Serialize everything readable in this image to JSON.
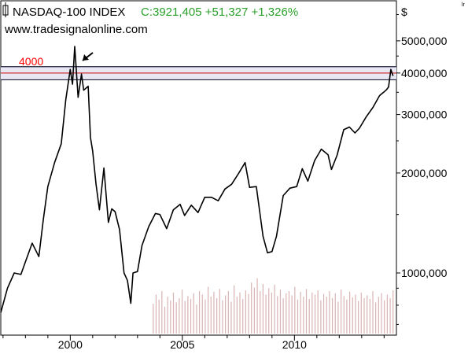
{
  "header": {
    "index_name": "NASDAQ-100 INDEX",
    "quote": "C:3921,405 +51,327 +1,326%",
    "website": "www.tradesignalonline.com",
    "currency": "$",
    "corner_mark": "lr"
  },
  "colors": {
    "price_line": "#000000",
    "quote_text": "#2ca02c",
    "band_border": "#1f1f3a",
    "band_fill": "#e8e8f4",
    "band_label": "#ff0000",
    "band_midline": "#cc0000",
    "volume_bars": "#d9b3b3"
  },
  "chart_data": {
    "type": "line",
    "title": "NASDAQ-100 INDEX",
    "y_scale": "log",
    "ylim": [
      650,
      6600
    ],
    "xlim": [
      1996.9,
      2014.55
    ],
    "y_ticks": [
      {
        "value": 1000,
        "label": "1000,000"
      },
      {
        "value": 2000,
        "label": "2000,000"
      },
      {
        "value": 3000,
        "label": "3000,000"
      },
      {
        "value": 4000,
        "label": "4000,000"
      },
      {
        "value": 5000,
        "label": "5000,000"
      }
    ],
    "x_ticks": [
      {
        "value": 2000,
        "label": "2000"
      },
      {
        "value": 2005,
        "label": "2005"
      },
      {
        "value": 2010,
        "label": "2010"
      }
    ],
    "reference_band": {
      "low": 3816,
      "high": 4180,
      "center": 4000,
      "label": "4000"
    },
    "annotation_arrow_at": {
      "x": 2000.55,
      "y": 4810
    },
    "series": [
      {
        "x": [
          1996.9,
          1997.2,
          1997.5,
          1997.8,
          1998.0,
          1998.3,
          1998.6,
          1998.8,
          1999.0,
          1999.3,
          1999.6,
          1999.8,
          2000.0,
          2000.1,
          2000.2,
          2000.35,
          2000.5,
          2000.6,
          2000.8,
          2000.9,
          2001.0,
          2001.15,
          2001.3,
          2001.5,
          2001.7,
          2001.85,
          2002.0,
          2002.2,
          2002.4,
          2002.55,
          2002.7,
          2002.8,
          2003.0,
          2003.2,
          2003.5,
          2003.8,
          2004.0,
          2004.3,
          2004.6,
          2004.9,
          2005.1,
          2005.4,
          2005.7,
          2006.0,
          2006.3,
          2006.6,
          2006.9,
          2007.2,
          2007.5,
          2007.8,
          2008.0,
          2008.3,
          2008.6,
          2008.8,
          2009.0,
          2009.2,
          2009.5,
          2009.8,
          2010.1,
          2010.35,
          2010.6,
          2010.9,
          2011.2,
          2011.5,
          2011.65,
          2011.9,
          2012.2,
          2012.45,
          2012.7,
          2012.9,
          2013.2,
          2013.5,
          2013.8,
          2014.0,
          2014.1,
          2014.2,
          2014.3,
          2014.4
        ],
        "y": [
          760,
          900,
          1000,
          990,
          1080,
          1230,
          1120,
          1450,
          1820,
          2150,
          2450,
          3320,
          4100,
          3700,
          4810,
          3380,
          3970,
          3550,
          3650,
          2560,
          2330,
          1850,
          1550,
          2070,
          1420,
          1560,
          1530,
          1350,
          1000,
          950,
          810,
          1000,
          1010,
          1210,
          1380,
          1510,
          1500,
          1360,
          1550,
          1610,
          1490,
          1600,
          1520,
          1690,
          1690,
          1650,
          1790,
          1850,
          1990,
          2150,
          1810,
          1820,
          1290,
          1150,
          1160,
          1290,
          1710,
          1800,
          1820,
          2060,
          1890,
          2180,
          2360,
          2270,
          2050,
          2260,
          2700,
          2750,
          2640,
          2730,
          2950,
          3150,
          3420,
          3510,
          3560,
          3630,
          4100,
          3921.405
        ]
      }
    ],
    "volume": {
      "x_start": 2003.7,
      "x_end": 2014.4,
      "levels": [
        0.42,
        0.55,
        0.48,
        0.6,
        0.38,
        0.52,
        0.47,
        0.58,
        0.44,
        0.5,
        0.62,
        0.46,
        0.53,
        0.49,
        0.57,
        0.41,
        0.6,
        0.55,
        0.48,
        0.66,
        0.52,
        0.59,
        0.5,
        0.63,
        0.47,
        0.54,
        0.6,
        0.45,
        0.68,
        0.52,
        0.58,
        0.49,
        0.61,
        0.56,
        0.72,
        0.65,
        0.78,
        0.6,
        0.7,
        0.55,
        0.64,
        0.58,
        0.69,
        0.53,
        0.62,
        0.5,
        0.57,
        0.6,
        0.54,
        0.66,
        0.48,
        0.59,
        0.52,
        0.63,
        0.49,
        0.58,
        0.55,
        0.61,
        0.47,
        0.56,
        0.52,
        0.6,
        0.5,
        0.57,
        0.45,
        0.62,
        0.53,
        0.48,
        0.59,
        0.51,
        0.55,
        0.46,
        0.58,
        0.5,
        0.54,
        0.49,
        0.6,
        0.44,
        0.52,
        0.57,
        0.47,
        0.55,
        0.5,
        0.61
      ]
    }
  }
}
